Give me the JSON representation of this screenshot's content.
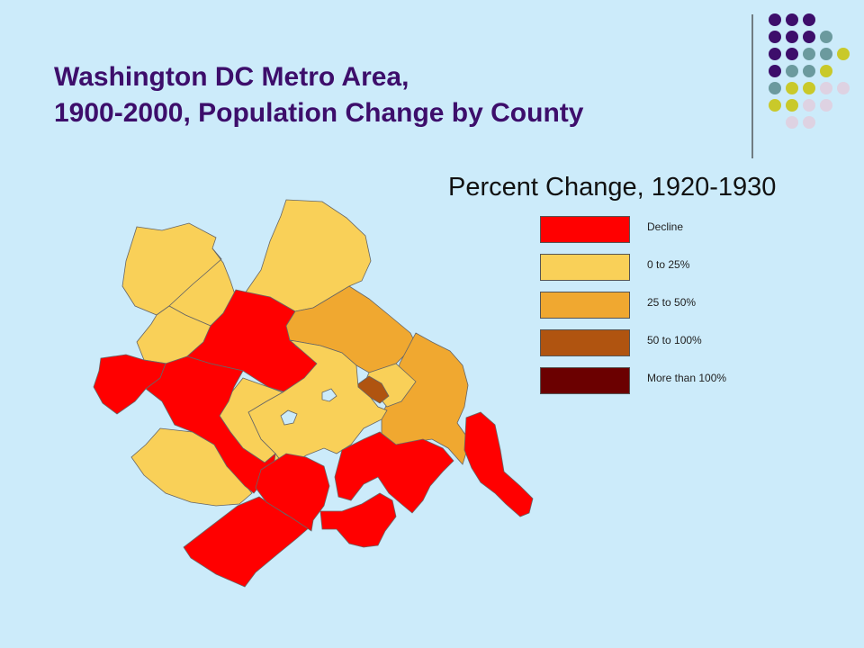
{
  "title": {
    "line1": "Washington DC Metro Area,",
    "line2": "1900-2000, Population Change by County"
  },
  "map_title": "Percent Change, 1920-1930",
  "colors": {
    "background": "#CCEBFA",
    "title": "#3D0E6B",
    "decline": "#FF0000",
    "0_25": "#F9D058",
    "25_50": "#F0A830",
    "50_100": "#B05410",
    "over_100": "#6B0000",
    "water": "#CCEBFA"
  },
  "legend": [
    {
      "label": "Decline",
      "color": "#FF0000"
    },
    {
      "label": "0 to 25%",
      "color": "#F9D058"
    },
    {
      "label": "25 to 50%",
      "color": "#F0A830"
    },
    {
      "label": "50 to 100%",
      "color": "#B05410"
    },
    {
      "label": "More than 100%",
      "color": "#6B0000"
    }
  ],
  "counties": [
    {
      "id": "county-nw-west",
      "category": "0 to 25%"
    },
    {
      "id": "county-north",
      "category": "0 to 25%"
    },
    {
      "id": "county-north-mid",
      "category": "0 to 25%"
    },
    {
      "id": "county-west-mid",
      "category": "0 to 25%"
    },
    {
      "id": "county-central-red",
      "category": "Decline"
    },
    {
      "id": "county-northeast",
      "category": "25 to 50%"
    },
    {
      "id": "county-east",
      "category": "25 to 50%"
    },
    {
      "id": "county-dc-inner",
      "category": "0 to 25%"
    },
    {
      "id": "county-dc-core",
      "category": "50 to 100%"
    },
    {
      "id": "county-central-yellow",
      "category": "0 to 25%"
    },
    {
      "id": "county-west-yellow",
      "category": "0 to 25%"
    },
    {
      "id": "county-southwest",
      "category": "0 to 25%"
    },
    {
      "id": "county-west-red",
      "category": "Decline"
    },
    {
      "id": "county-center-red",
      "category": "Decline"
    },
    {
      "id": "county-south-red",
      "category": "Decline"
    },
    {
      "id": "county-south-center-red",
      "category": "Decline"
    },
    {
      "id": "county-south-east-red",
      "category": "Decline"
    },
    {
      "id": "county-east-red",
      "category": "Decline"
    },
    {
      "id": "county-far-east-red",
      "category": "Decline"
    }
  ],
  "decor_dot_colors": [
    "#3D0E6B",
    "#6B9A9E",
    "#C9C92A",
    "#DED2E2"
  ]
}
